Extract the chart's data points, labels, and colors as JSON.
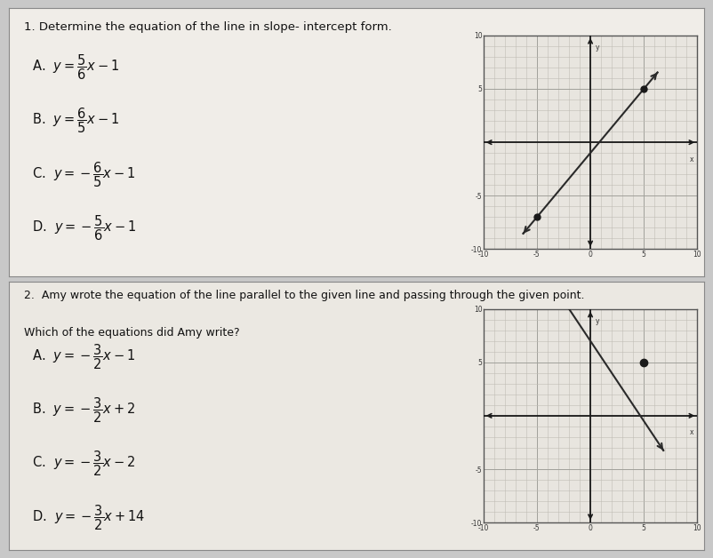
{
  "bg_color": "#c8c8c8",
  "panel1_bg": "#f0ede8",
  "panel2_bg": "#ebe8e2",
  "graph_bg": "#e8e5df",
  "q1_title": "1. Determine the equation of the line in slope- intercept form.",
  "q1_answers_latex": [
    "A.  $y = \\dfrac{5}{6}x - 1$",
    "B.  $y = \\dfrac{6}{5}x - 1$",
    "C.  $y = -\\dfrac{6}{5}x - 1$",
    "D.  $y = -\\dfrac{5}{6}x - 1$"
  ],
  "q2_title": "2.  Amy wrote the equation of the line parallel to the given line and passing through the given point.",
  "q2_subtitle": "Which of the equations did Amy write?",
  "q2_answers_latex": [
    "A.  $y = -\\dfrac{3}{2}x - 1$",
    "B.  $y = -\\dfrac{3}{2}x + 2$",
    "C.  $y = -\\dfrac{3}{2}x - 2$",
    "D.  $y = -\\dfrac{3}{2}x + 14$"
  ],
  "graph1_xlim": [
    -10,
    10
  ],
  "graph1_ylim": [
    -10,
    10
  ],
  "graph1_point1": [
    -5,
    -7
  ],
  "graph1_point2": [
    5,
    5
  ],
  "graph2_xlim": [
    -10,
    10
  ],
  "graph2_ylim": [
    -10,
    10
  ],
  "graph2_line_p1": [
    -2,
    10
  ],
  "graph2_line_p2": [
    6,
    -2
  ],
  "graph2_dot": [
    5,
    5
  ],
  "line_color": "#2a2a2a",
  "dot_color": "#1a1a1a",
  "grid_minor_color": "#c0bcb5",
  "grid_major_color": "#a0a09a",
  "axis_color": "#1a1a1a",
  "tick_label_size": 5.5,
  "title_fontsize": 9.5,
  "answer_fontsize": 10.5,
  "q2_title_fontsize": 9.0
}
